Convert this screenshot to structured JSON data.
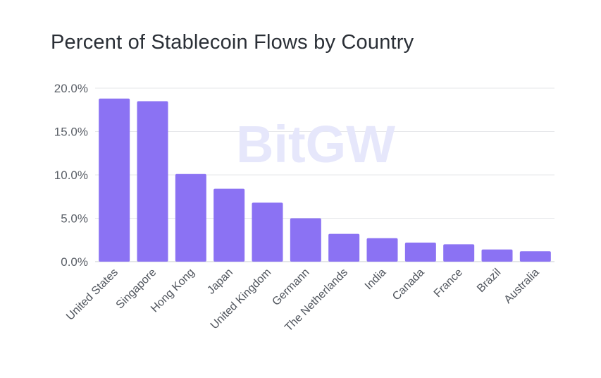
{
  "chart_data": {
    "type": "bar",
    "title": "Percent of Stablecoin Flows by Country",
    "categories": [
      "United States",
      "Singapore",
      "Hong Kong",
      "Japan",
      "United Kingdom",
      "Germann",
      "The Netherlands",
      "India",
      "Canada",
      "France",
      "Brazil",
      "Australia"
    ],
    "values": [
      18.8,
      18.5,
      10.1,
      8.4,
      6.8,
      5.0,
      3.2,
      2.7,
      2.2,
      2.0,
      1.4,
      1.2
    ],
    "ylim": [
      0,
      20
    ],
    "yticks": [
      {
        "value": 0,
        "label": "0.0%"
      },
      {
        "value": 5,
        "label": "5.0%"
      },
      {
        "value": 10,
        "label": "10.0%"
      },
      {
        "value": 15,
        "label": "15.0%"
      },
      {
        "value": 20,
        "label": "20.0%"
      }
    ],
    "grid": true,
    "bar_color": "#8b72f3",
    "grid_color": "#e6e7ea",
    "watermark": "BitGW"
  }
}
